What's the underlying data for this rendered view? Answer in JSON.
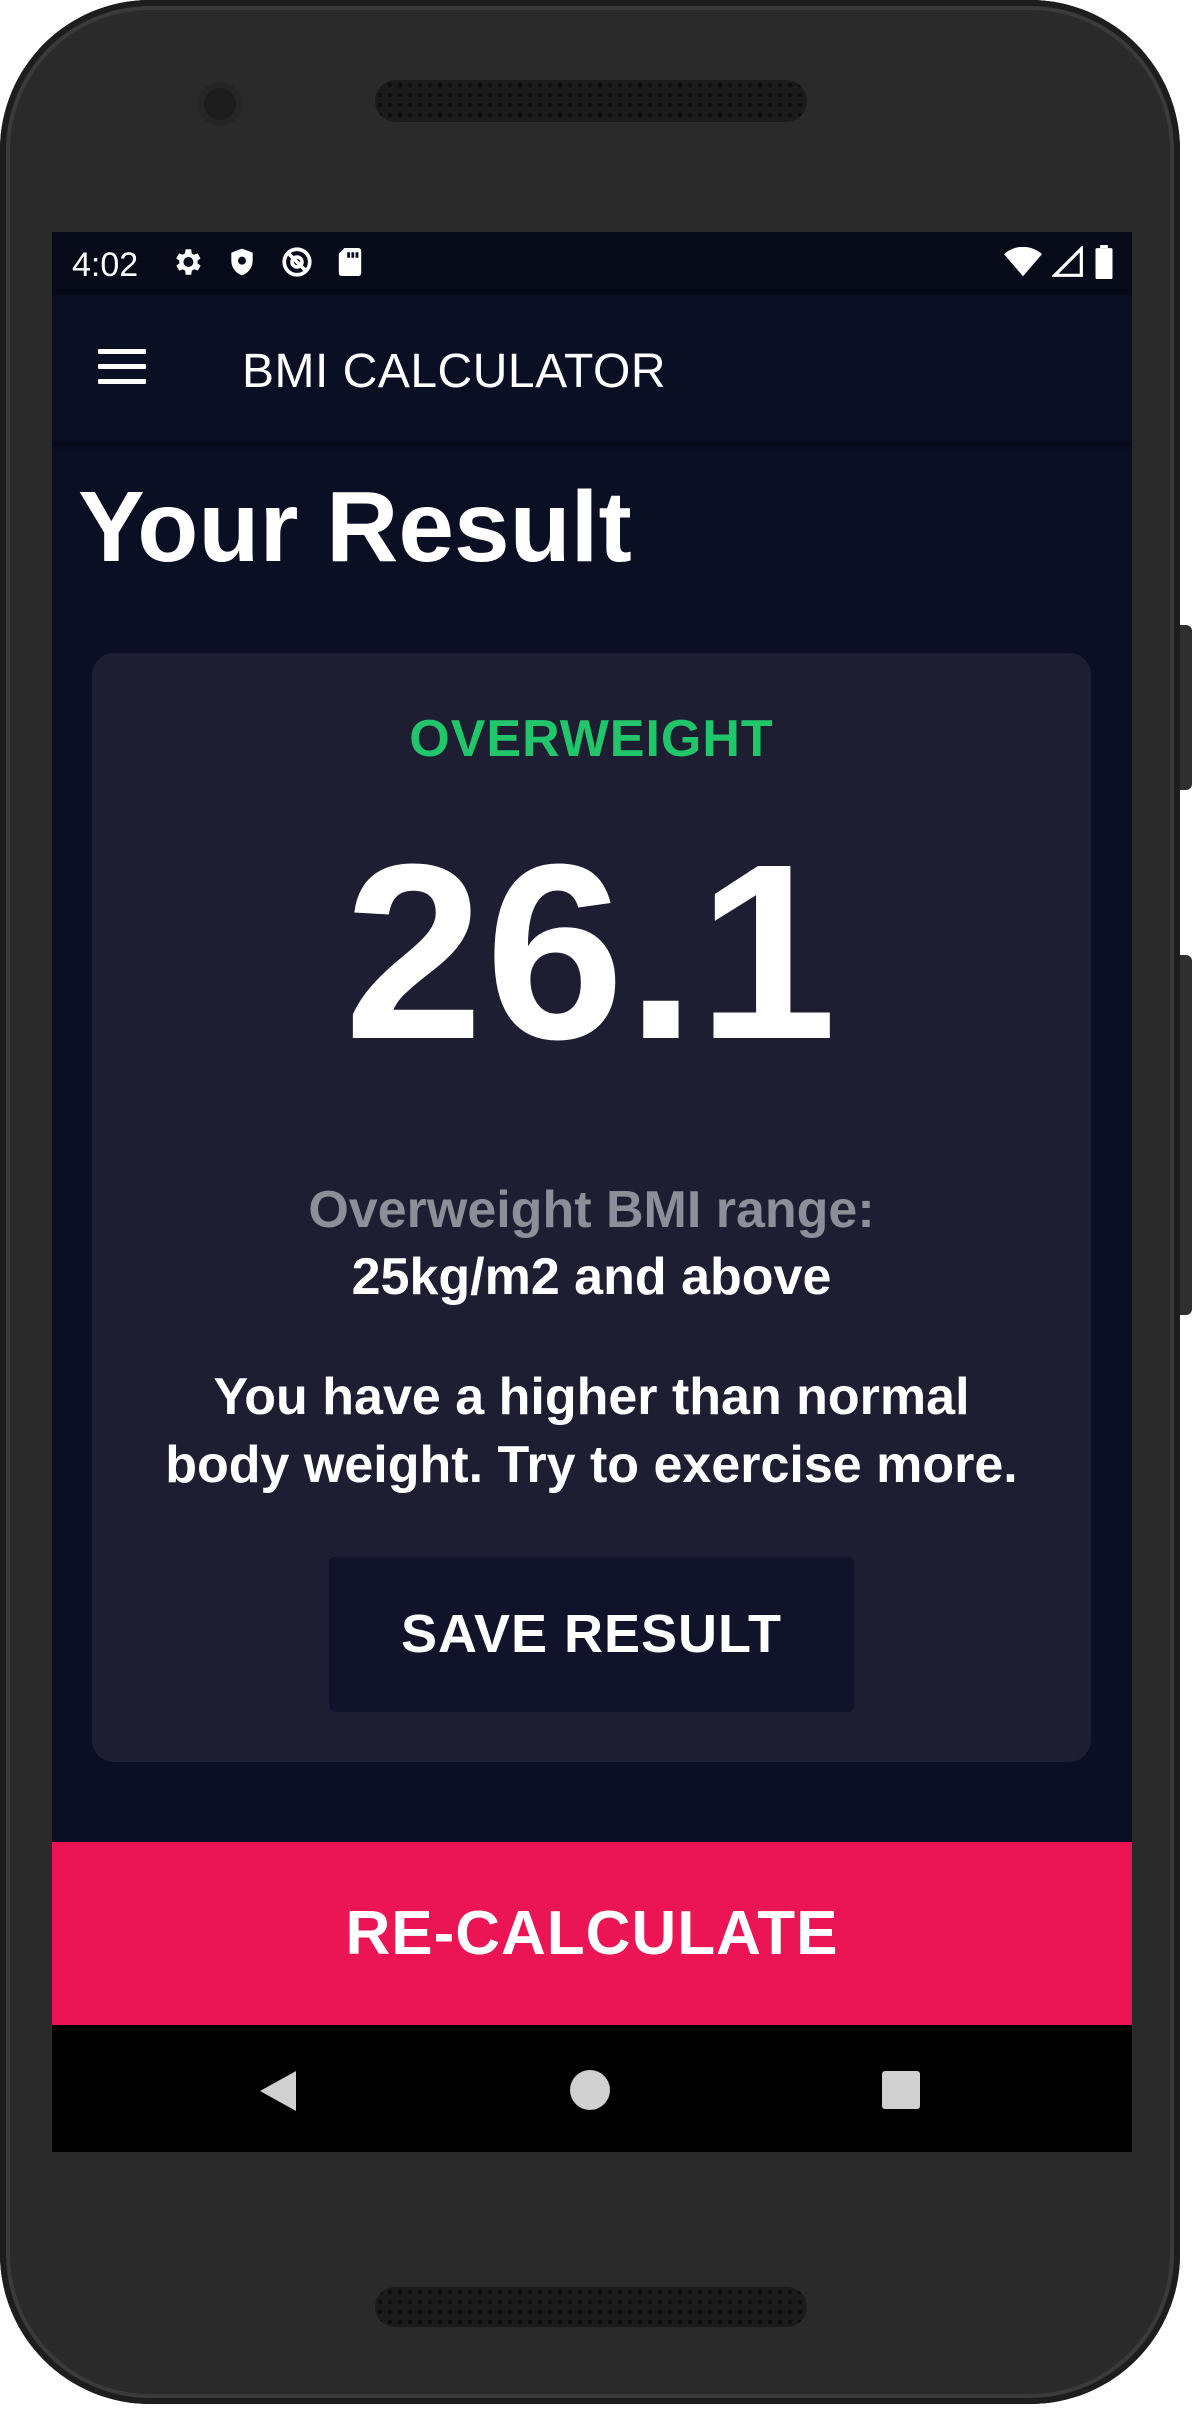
{
  "status_bar": {
    "time": "4:02",
    "left_icons": [
      "gear-icon",
      "shield-icon",
      "at-sign-icon",
      "sd-card-icon"
    ],
    "right_icons": [
      "wifi-icon",
      "signal-icon",
      "battery-icon"
    ]
  },
  "app_bar": {
    "title": "BMI CALCULATOR",
    "menu_icon": "hamburger-menu-icon"
  },
  "page": {
    "title": "Your Result"
  },
  "result": {
    "status": "OVERWEIGHT",
    "bmi": "26.1",
    "range_title": "Overweight BMI range:",
    "range_value": "25kg/m2 and above",
    "interpretation": "You have a higher than normal body weight. Try to exercise more.",
    "save_label": "SAVE RESULT"
  },
  "bottom_action": {
    "label": "RE-CALCULATE"
  },
  "nav_bar": {
    "icons": [
      "back-icon",
      "home-icon",
      "recents-icon"
    ]
  },
  "colors": {
    "background": "#0b0f23",
    "card": "#1e1e33",
    "status_green": "#22c66a",
    "accent_pink": "#eb1555",
    "muted_text": "#8e8e98"
  }
}
